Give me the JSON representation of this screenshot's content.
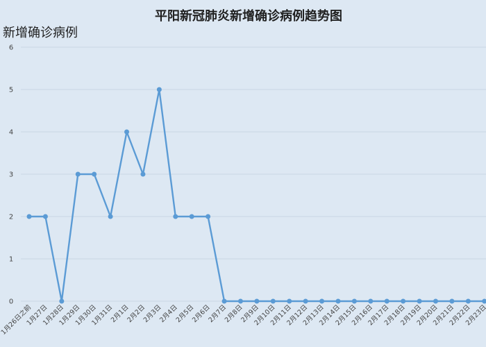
{
  "chart_data": {
    "type": "line",
    "title": "平阳新冠肺炎新增确诊病例趋势图",
    "ylabel": "新增确诊病例",
    "xlabel": "",
    "ylim": [
      0,
      6
    ],
    "yticks": [
      0,
      1,
      2,
      3,
      4,
      5,
      6
    ],
    "grid": true,
    "legend": "none",
    "colors": {
      "line": "#5b9bd5",
      "background": "#dde8f3"
    },
    "categories": [
      "1月26日之前",
      "1月27日",
      "1月28日",
      "1月29日",
      "1月30日",
      "1月31日",
      "2月1日",
      "2月2日",
      "2月3日",
      "2月4日",
      "2月5日",
      "2月6日",
      "2月7日",
      "2月8日",
      "2月9日",
      "2月10日",
      "2月11日",
      "2月12日",
      "2月13日",
      "2月14日",
      "2月15日",
      "2月16日",
      "2月17日",
      "2月18日",
      "2月19日",
      "2月20日",
      "2月21日",
      "2月22日",
      "2月23日"
    ],
    "values": [
      2,
      2,
      0,
      3,
      3,
      2,
      4,
      3,
      5,
      2,
      2,
      2,
      0,
      0,
      0,
      0,
      0,
      0,
      0,
      0,
      0,
      0,
      0,
      0,
      0,
      0,
      0,
      0,
      0
    ]
  }
}
